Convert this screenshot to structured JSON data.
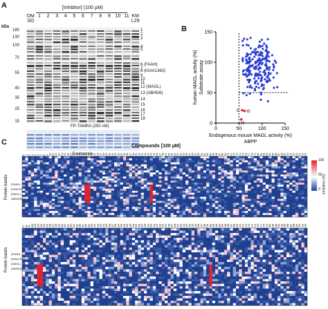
{
  "panel_a": {
    "label": "A",
    "inhibitor_header": "[Inhibitor]  (100 µM)",
    "lanes": [
      "DM\nSO",
      "1",
      "2",
      "3",
      "4",
      "5",
      "6",
      "7",
      "8",
      "9",
      "10",
      "11",
      "KM\nL29"
    ],
    "kda_title": "kDa",
    "kda_ticks": [
      "180",
      "130",
      "100",
      "70",
      "55",
      "40",
      "35",
      "25",
      "15"
    ],
    "band_labels": [
      "1",
      "2",
      "3",
      "4",
      "5",
      "6 (FAAH)",
      "7",
      "8 (KIAA1363)",
      "9",
      "10",
      "11",
      "12 (MAGL)",
      "13 (ABHD6)",
      "14",
      "15",
      "16",
      "17",
      "18"
    ],
    "gel_caption": "FP-TAMRA (250 nM)",
    "coomassie_caption": "Coomassie"
  },
  "panel_b": {
    "label": "B",
    "chart_data": {
      "type": "scatter",
      "xlabel": "Endogenous mouse MAGL activity (%)",
      "xlabel2": "ABPP",
      "ylabel": "human MAGL activity (%)",
      "ylabel2": "Substrate assay",
      "xlim": [
        0,
        150
      ],
      "ylim": [
        0,
        150
      ],
      "xticks": [
        0,
        50,
        100,
        150
      ],
      "yticks": [
        0,
        50,
        100,
        150
      ],
      "threshold_x": 50,
      "threshold_y": 50,
      "highlight_points": [
        {
          "label": "23",
          "x": 55,
          "y": 6
        },
        {
          "label": "8",
          "x": 57,
          "y": 21
        },
        {
          "label": "82",
          "x": 62,
          "y": 20
        }
      ]
    }
  },
  "panel_c": {
    "label": "C",
    "compounds_title": "Compounds   [100 µM]",
    "ylabel": "Protein bands",
    "colorbar_title": "Inhibition (%)",
    "colorbar_ticks": [
      "100",
      "50",
      "0"
    ],
    "colors": {
      "low": "#1f3f8f",
      "mid": "#ffffff",
      "high": "#e8222e"
    },
    "row_labels_top": [
      "(FAAH)",
      "(KIAA1363)",
      "(MAGL)",
      "(ABHD6)"
    ],
    "row_labels_bottom": [
      "(FAAH)",
      "(KIAA1363)",
      "(MAGL)",
      "(ABHD6)"
    ]
  }
}
